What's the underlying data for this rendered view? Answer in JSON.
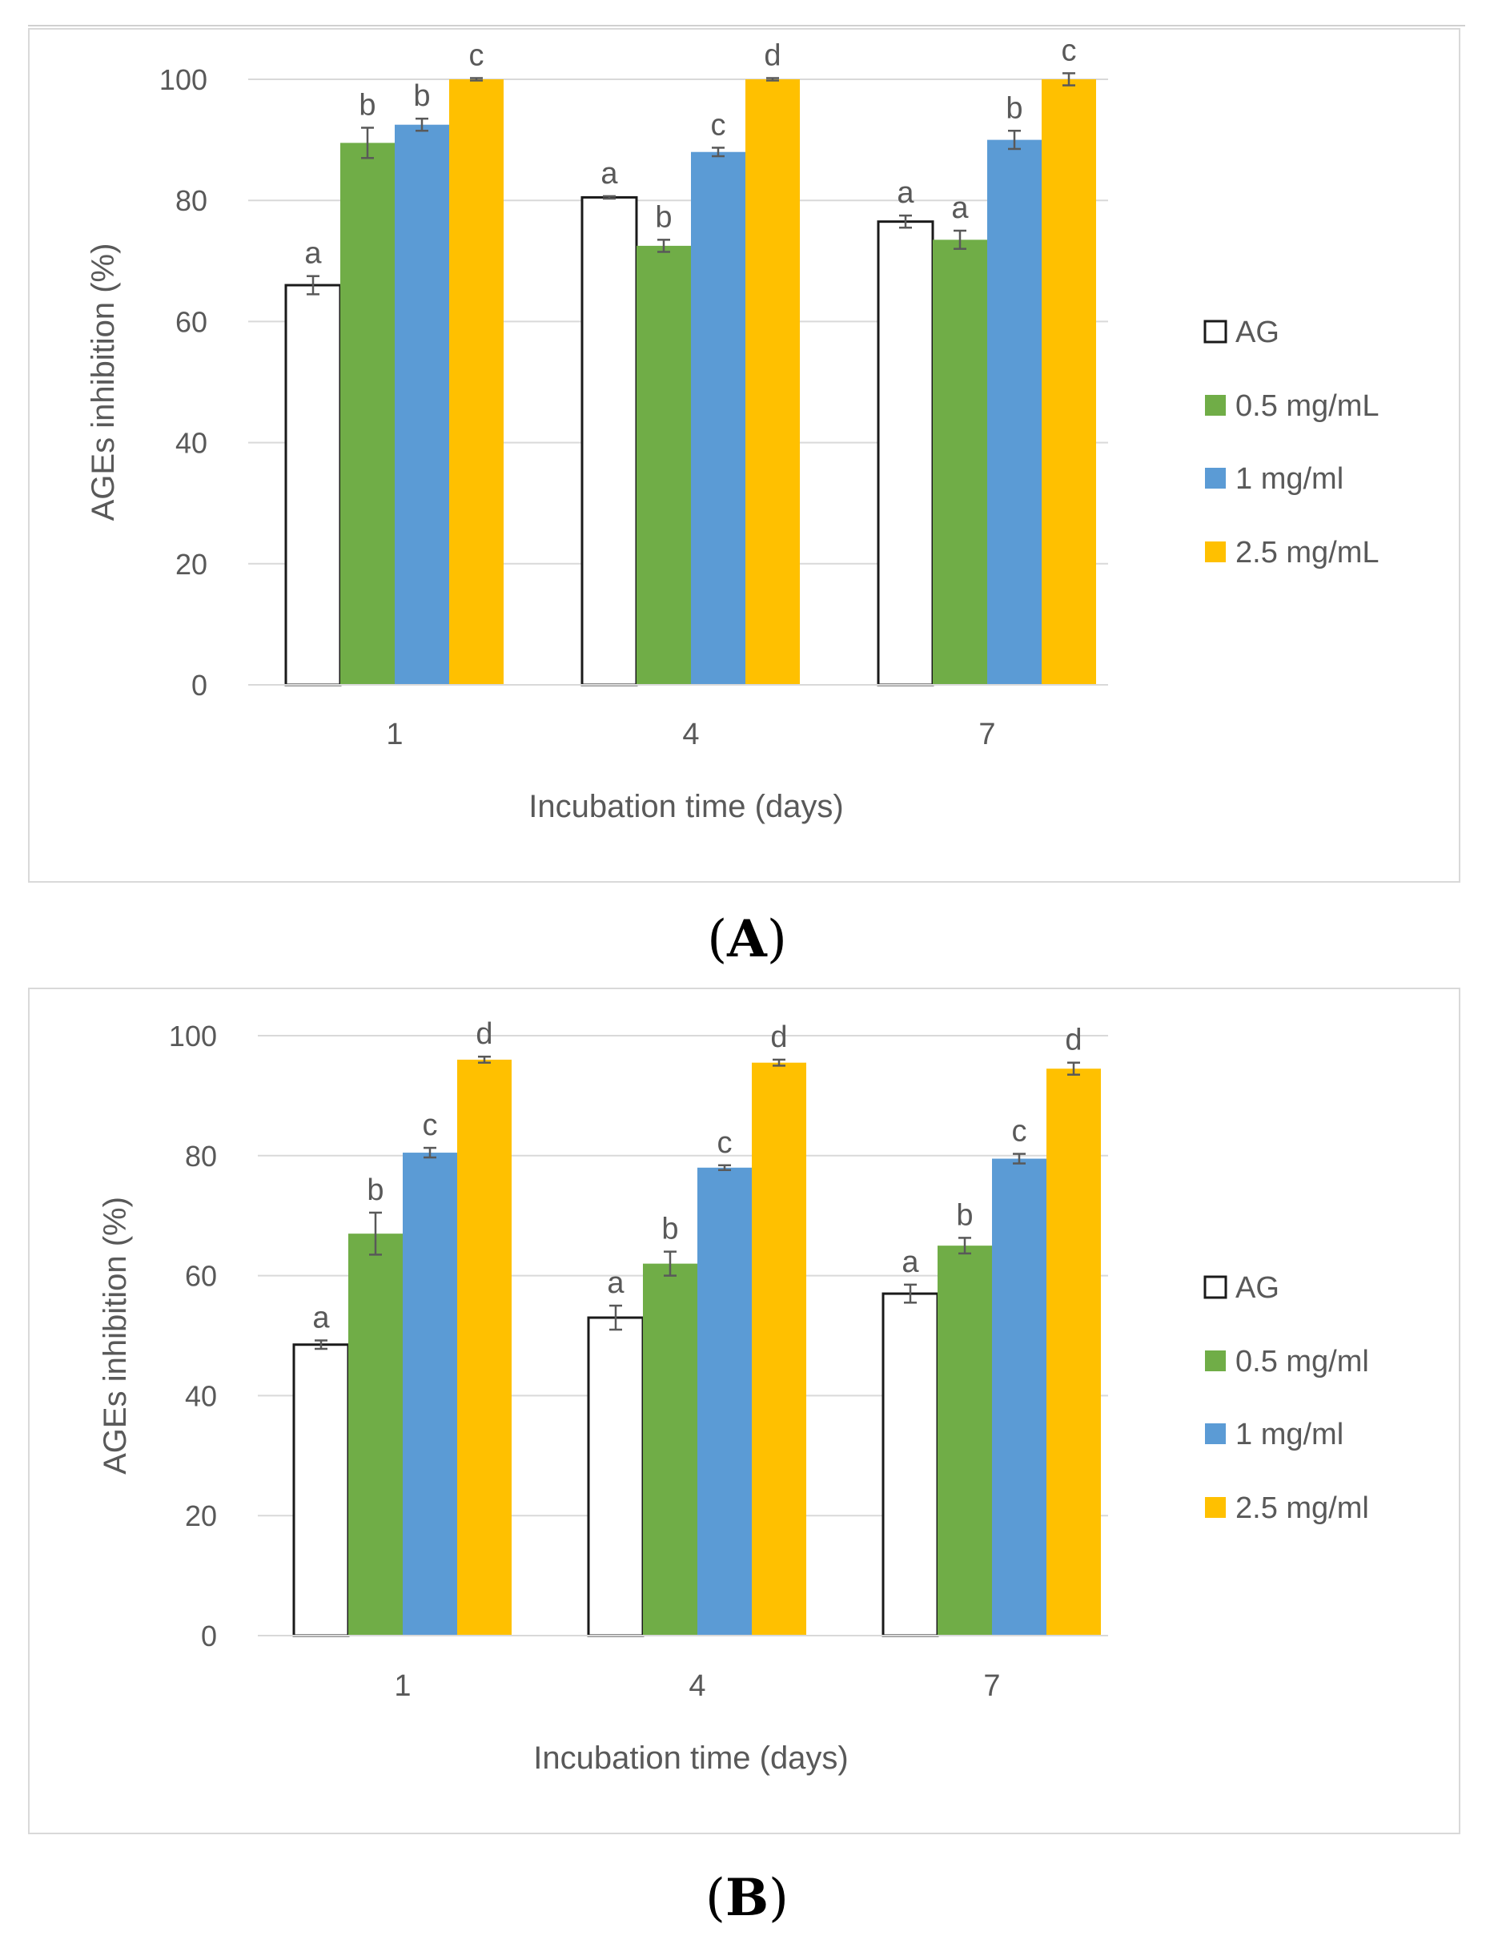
{
  "panel_labels": {
    "a_open": "(",
    "a_letter": "A",
    "a_close": ")",
    "b_open": "(",
    "b_letter": "B",
    "b_close": ")"
  },
  "colors": {
    "AG": "#ffffff",
    "c05": "#70ad47",
    "c1": "#5b9bd5",
    "c25": "#ffc000",
    "grid": "#d9d9d9",
    "text": "#595959"
  },
  "chart_data": [
    {
      "type": "bar",
      "title": "",
      "xlabel": "Incubation time (days)",
      "ylabel": "AGEs  inhibition (%)",
      "ylim": [
        0,
        100
      ],
      "yticks": [
        0,
        20,
        40,
        60,
        80,
        100
      ],
      "grid": true,
      "legend_position": "right",
      "categories": [
        "1",
        "4",
        "7"
      ],
      "series": [
        {
          "name": "AG",
          "color": "#ffffff",
          "values": [
            66,
            80.5,
            76.5
          ],
          "errors": [
            1.5,
            0.2,
            1.0
          ],
          "letters": [
            "a",
            "a",
            "a"
          ]
        },
        {
          "name": "0.5 mg/mL",
          "color": "#70ad47",
          "values": [
            89.5,
            72.5,
            73.5
          ],
          "errors": [
            2.5,
            1.0,
            1.5
          ],
          "letters": [
            "b",
            "b",
            "a"
          ]
        },
        {
          "name": "1 mg/ml",
          "color": "#5b9bd5",
          "values": [
            92.5,
            88,
            90
          ],
          "errors": [
            1.0,
            0.7,
            1.5
          ],
          "letters": [
            "b",
            "c",
            "b"
          ]
        },
        {
          "name": "2.5 mg/mL",
          "color": "#ffc000",
          "values": [
            100,
            100,
            100
          ],
          "errors": [
            0.2,
            0.2,
            1.0
          ],
          "letters": [
            "c",
            "d",
            "c"
          ]
        }
      ]
    },
    {
      "type": "bar",
      "title": "",
      "xlabel": "Incubation time (days)",
      "ylabel": "AGEs inhibition (%)",
      "ylim": [
        0,
        100
      ],
      "yticks": [
        0,
        20,
        40,
        60,
        80,
        100
      ],
      "grid": true,
      "legend_position": "right",
      "categories": [
        "1",
        "4",
        "7"
      ],
      "series": [
        {
          "name": "AG",
          "color": "#ffffff",
          "values": [
            48.5,
            53,
            57
          ],
          "errors": [
            0.7,
            2.0,
            1.5
          ],
          "letters": [
            "a",
            "a",
            "a"
          ]
        },
        {
          "name": "0.5 mg/ml",
          "color": "#70ad47",
          "values": [
            67,
            62,
            65
          ],
          "errors": [
            3.5,
            2.0,
            1.3
          ],
          "letters": [
            "b",
            "b",
            "b"
          ]
        },
        {
          "name": "1 mg/ml",
          "color": "#5b9bd5",
          "values": [
            80.5,
            78,
            79.5
          ],
          "errors": [
            0.8,
            0.4,
            0.8
          ],
          "letters": [
            "c",
            "c",
            "c"
          ]
        },
        {
          "name": "2.5 mg/ml",
          "color": "#ffc000",
          "values": [
            96,
            95.5,
            94.5
          ],
          "errors": [
            0.5,
            0.5,
            1.0
          ],
          "letters": [
            "d",
            "d",
            "d"
          ]
        }
      ]
    }
  ]
}
